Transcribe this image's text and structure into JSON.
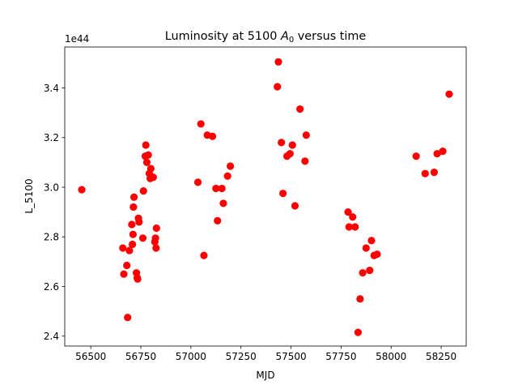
{
  "chart_data": {
    "type": "scatter",
    "title": "Luminosity at 5100 A_0 versus time",
    "title_parts": {
      "before": "Luminosity at 5100 ",
      "symbol": "A",
      "subscript": "0",
      "after": " versus time"
    },
    "xlabel": "MJD",
    "ylabel": "L_5100",
    "y_offset_text": "1e44",
    "xlim": [
      56370,
      58375
    ],
    "ylim": [
      2.36,
      3.565
    ],
    "xticks": [
      56500,
      56750,
      57000,
      57250,
      57500,
      57750,
      58000,
      58250
    ],
    "yticks": [
      2.4,
      2.6,
      2.8,
      3.0,
      3.2,
      3.4
    ],
    "marker_color": "#ff0000",
    "grid": false,
    "legend": "none",
    "points": [
      [
        56455,
        2.99
      ],
      [
        56660,
        2.755
      ],
      [
        56665,
        2.65
      ],
      [
        56680,
        2.685
      ],
      [
        56684,
        2.475
      ],
      [
        56693,
        2.745
      ],
      [
        56705,
        2.85
      ],
      [
        56708,
        2.77
      ],
      [
        56711,
        2.81
      ],
      [
        56713,
        2.92
      ],
      [
        56716,
        2.96
      ],
      [
        56728,
        2.655
      ],
      [
        56732,
        2.635
      ],
      [
        56734,
        2.63
      ],
      [
        56738,
        2.875
      ],
      [
        56741,
        2.86
      ],
      [
        56760,
        2.795
      ],
      [
        56763,
        2.985
      ],
      [
        56772,
        3.125
      ],
      [
        56775,
        3.17
      ],
      [
        56780,
        3.1
      ],
      [
        56787,
        3.13
      ],
      [
        56792,
        3.055
      ],
      [
        56797,
        3.035
      ],
      [
        56800,
        3.075
      ],
      [
        56812,
        3.04
      ],
      [
        56820,
        2.78
      ],
      [
        56823,
        2.795
      ],
      [
        56826,
        2.755
      ],
      [
        56828,
        2.835
      ],
      [
        57035,
        3.02
      ],
      [
        57050,
        3.255
      ],
      [
        57065,
        2.725
      ],
      [
        57082,
        3.21
      ],
      [
        57108,
        3.205
      ],
      [
        57125,
        2.995
      ],
      [
        57133,
        2.865
      ],
      [
        57155,
        2.995
      ],
      [
        57162,
        2.935
      ],
      [
        57183,
        3.045
      ],
      [
        57197,
        3.085
      ],
      [
        57432,
        3.405
      ],
      [
        57437,
        3.505
      ],
      [
        57452,
        3.18
      ],
      [
        57460,
        2.975
      ],
      [
        57480,
        3.125
      ],
      [
        57495,
        3.135
      ],
      [
        57507,
        3.17
      ],
      [
        57520,
        2.925
      ],
      [
        57545,
        3.315
      ],
      [
        57570,
        3.105
      ],
      [
        57576,
        3.21
      ],
      [
        57785,
        2.9
      ],
      [
        57790,
        2.84
      ],
      [
        57808,
        2.88
      ],
      [
        57820,
        2.84
      ],
      [
        57835,
        2.415
      ],
      [
        57845,
        2.55
      ],
      [
        57858,
        2.655
      ],
      [
        57875,
        2.755
      ],
      [
        57893,
        2.665
      ],
      [
        57902,
        2.785
      ],
      [
        57915,
        2.725
      ],
      [
        57930,
        2.73
      ],
      [
        58125,
        3.125
      ],
      [
        58170,
        3.055
      ],
      [
        58215,
        3.06
      ],
      [
        58230,
        3.135
      ],
      [
        58258,
        3.145
      ],
      [
        58290,
        3.375
      ]
    ]
  }
}
